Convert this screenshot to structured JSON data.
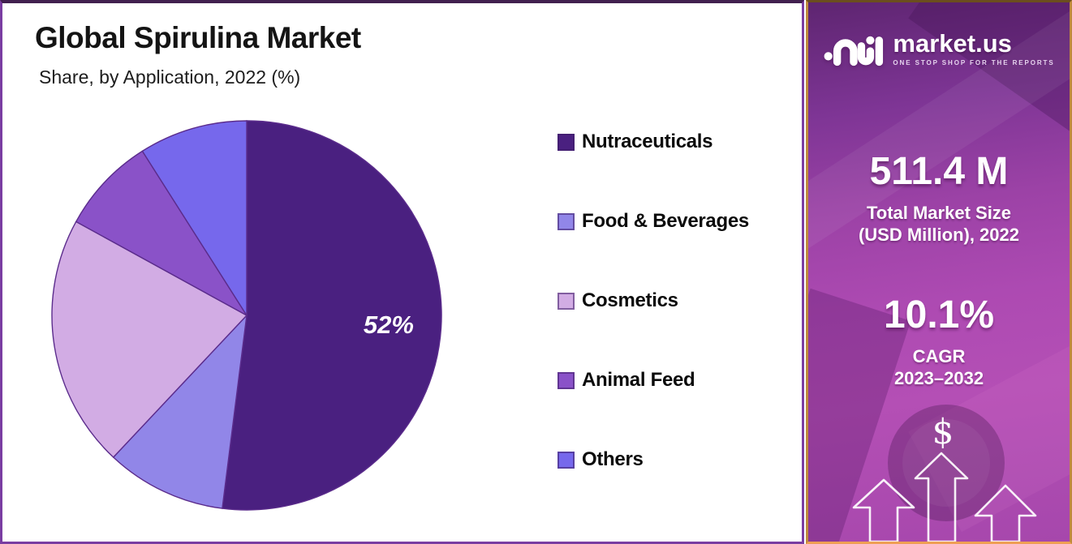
{
  "title": "Global Spirulina Market",
  "subtitle": "Share, by Application, 2022 (%)",
  "chart_data": {
    "type": "pie",
    "title": "Global Spirulina Market Share, by Application, 2022 (%)",
    "categories": [
      "Nutraceuticals",
      "Food & Beverages",
      "Cosmetics",
      "Animal Feed",
      "Others"
    ],
    "values": [
      52,
      10,
      21,
      8,
      9
    ],
    "unit": "%",
    "value_labels": [
      "52%",
      "",
      "",
      "",
      ""
    ],
    "colors": [
      "#4A2080",
      "#9186E8",
      "#D2ACE4",
      "#8A52C8",
      "#7668EC"
    ],
    "slice_border_color": "#5B2C8C",
    "start_angle_deg": 0,
    "direction": "clockwise",
    "legend_position": "right"
  },
  "side_panel": {
    "brand": {
      "name": "market.us",
      "tagline": "ONE STOP SHOP FOR THE REPORTS"
    },
    "market_size": {
      "value": "511.4 M",
      "label_line1": "Total Market Size",
      "label_line2": "(USD Million), 2022"
    },
    "cagr": {
      "value": "10.1%",
      "label_line1": "CAGR",
      "label_line2": "2023–2032"
    },
    "dollar_symbol": "$"
  },
  "theme": {
    "left_panel_border": "#7A3DA2",
    "right_panel_border": "#C08A3E",
    "right_panel_gradient_top": "#5E2571",
    "right_panel_gradient_bottom": "#A647AC",
    "title_text": "#141414",
    "panel_text": "#FFFFFF"
  }
}
